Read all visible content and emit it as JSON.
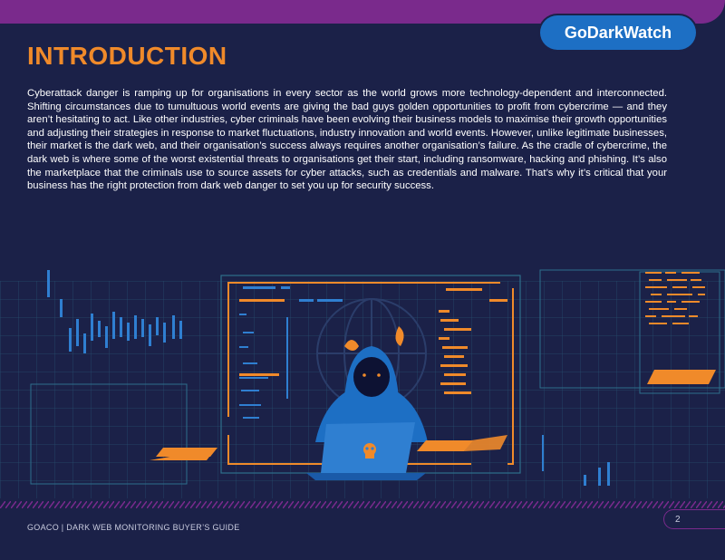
{
  "brand": {
    "name": "GoDarkWatch"
  },
  "page": {
    "title": "INTRODUCTION",
    "body": "Cyberattack danger is ramping up for organisations in every sector as the world grows more technology-dependent and interconnected. Shifting circumstances due to tumultuous world events are giving the bad guys golden opportunities to profit from cybercrime — and they aren’t hesitating to act. Like other industries, cyber criminals have been evolving their business models to maximise their growth opportunities and adjusting their strategies in response to market fluctuations, industry innovation and world events. However, unlike legitimate businesses, their market is the dark web, and their organisation’s success always requires another organisation’s failure. As the cradle of cybercrime, the dark web is where some of the worst existential threats to organisations get their start, including ransomware, hacking and phishing. It’s also the marketplace that the criminals use to source assets for cyber attacks, such as credentials and malware. That’s why it’s critical that your business has the right protection from dark web danger to set you up for security success."
  },
  "footer": {
    "left_text": "GOACO | DARK WEB MONITORING BUYER’S GUIDE",
    "page_number": "2"
  },
  "colors": {
    "background": "#1b2148",
    "accent_orange": "#f08a2a",
    "accent_blue": "#1d6fc4",
    "accent_purple": "#7a2a8c",
    "grid_teal": "#2e6f8c"
  },
  "illustration": {
    "icons": [
      "hooded-hacker-icon",
      "globe-icon",
      "skull-icon",
      "laptop-icon",
      "stock-chart-icon",
      "code-lines-icon"
    ]
  }
}
